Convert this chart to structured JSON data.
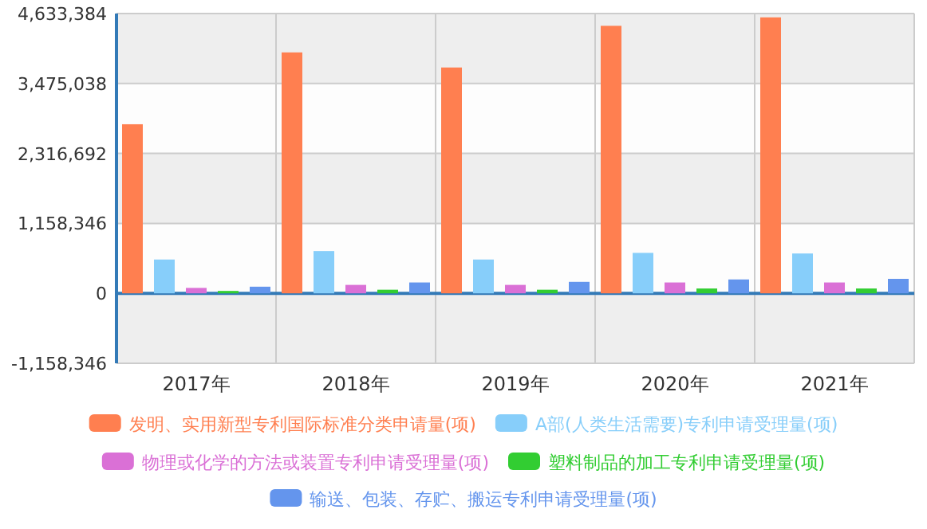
{
  "chart_data": {
    "type": "bar",
    "categories": [
      "2017年",
      "2018年",
      "2019年",
      "2020年",
      "2021年"
    ],
    "series": [
      {
        "name": "发明、实用新型专利国际标准分类申请量(项)",
        "color": "#ff7f50",
        "values": [
          2800000,
          3990000,
          3740000,
          4430000,
          4570000
        ]
      },
      {
        "name": "A部(人类生活需要)专利申请受理量(项)",
        "color": "#87cefa",
        "values": [
          560000,
          700000,
          560000,
          670000,
          660000
        ]
      },
      {
        "name": "物理或化学的方法或装置专利申请受理量(项)",
        "color": "#da70d6",
        "values": [
          90000,
          140000,
          140000,
          180000,
          180000
        ]
      },
      {
        "name": "塑料制品的加工专利申请受理量(项)",
        "color": "#32cd32",
        "values": [
          40000,
          60000,
          60000,
          80000,
          80000
        ]
      },
      {
        "name": "输送、包装、存贮、搬运专利申请受理量(项)",
        "color": "#6495ed",
        "values": [
          110000,
          180000,
          190000,
          230000,
          240000
        ]
      }
    ],
    "ylim": [
      -1158346,
      4633384
    ],
    "yticks": [
      {
        "value": -1158346,
        "label": "-1,158,346"
      },
      {
        "value": 0,
        "label": "0"
      },
      {
        "value": 1158346,
        "label": "1,158,346"
      },
      {
        "value": 2316692,
        "label": "2,316,692"
      },
      {
        "value": 3475038,
        "label": "3,475,038"
      },
      {
        "value": 4633384,
        "label": "4,633,384"
      }
    ],
    "ref_lines": [
      {
        "axis": "y",
        "value": 0,
        "color": "#337ab7"
      }
    ],
    "grid": true,
    "legend": "bottom"
  }
}
